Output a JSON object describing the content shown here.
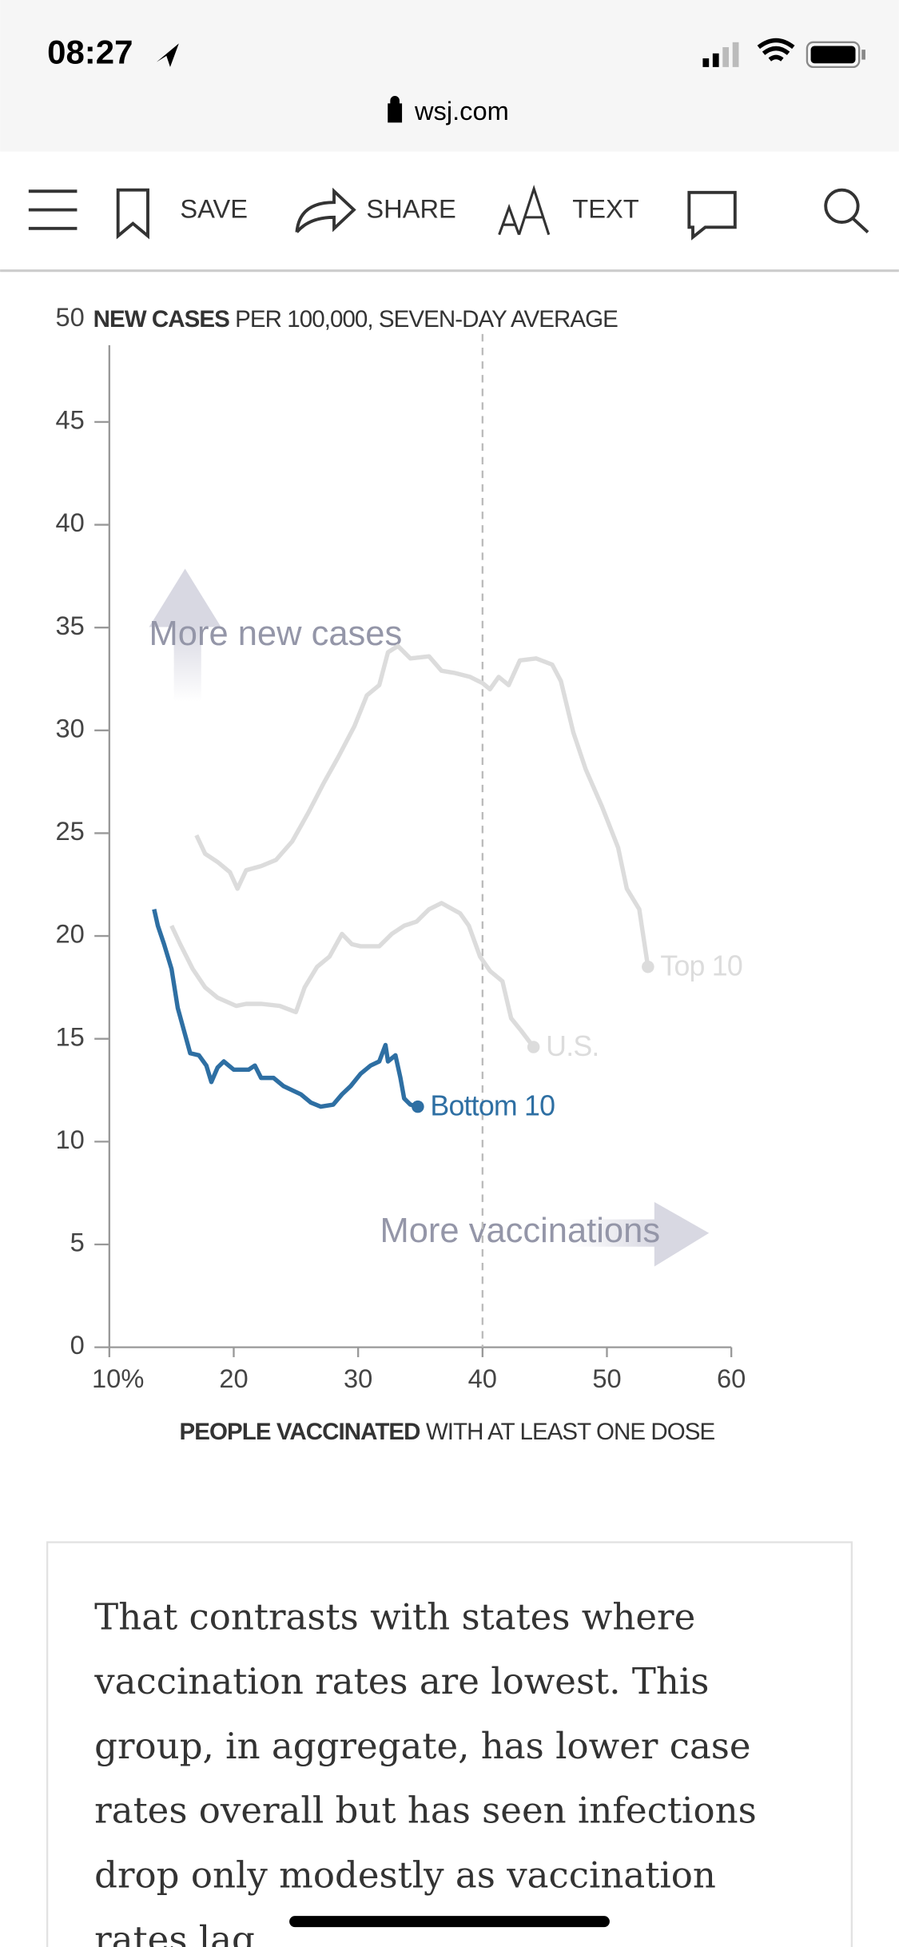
{
  "status_bar": {
    "time": "08:27"
  },
  "address_bar": {
    "url": "wsj.com"
  },
  "toolbar": {
    "save": "SAVE",
    "share": "SHARE",
    "text": "TEXT"
  },
  "chart_data": {
    "type": "line",
    "title_bold": "NEW CASES",
    "title_rest": "PER 100,000, SEVEN-DAY AVERAGE",
    "x_label_bold": "PEOPLE VACCINATED",
    "x_label_rest": "WITH AT LEAST ONE DOSE",
    "annotations": [
      "More new cases",
      "More vaccinations"
    ],
    "xlim": [
      10,
      60
    ],
    "ylim": [
      0,
      50
    ],
    "xticks": [
      {
        "value": 10,
        "label": "10%"
      },
      20,
      30,
      40,
      50,
      60
    ],
    "yticks": [
      0,
      5,
      10,
      15,
      20,
      25,
      30,
      35,
      40,
      45,
      50
    ],
    "reference_x": 40,
    "series": [
      {
        "name": "Top 10",
        "color": "#dcdcdc",
        "x": [
          17.0,
          17.7,
          18.7,
          19.7,
          20.3,
          21.0,
          22.2,
          23.4,
          24.7,
          26.0,
          27.2,
          28.4,
          29.7,
          30.7,
          31.7,
          32.4,
          33.2,
          34.2,
          35.7,
          36.7,
          37.7,
          39.0,
          40.0,
          40.6,
          41.3,
          42.1,
          43.0,
          44.3,
          45.6,
          46.3,
          47.3,
          48.3,
          49.6,
          50.9,
          51.6,
          52.6,
          53.3
        ],
        "values": [
          24.9,
          24.0,
          23.6,
          23.1,
          22.3,
          23.2,
          23.4,
          23.7,
          24.6,
          26.0,
          27.4,
          28.7,
          30.2,
          31.7,
          32.2,
          33.8,
          34.1,
          33.5,
          33.6,
          32.9,
          32.8,
          32.6,
          32.3,
          32.0,
          32.6,
          32.2,
          33.4,
          33.5,
          33.2,
          32.4,
          29.9,
          28.1,
          26.3,
          24.3,
          22.3,
          21.3,
          18.5
        ]
      },
      {
        "name": "U.S.",
        "color": "#dcdcdc",
        "x": [
          15.0,
          15.7,
          16.7,
          17.7,
          18.7,
          20.2,
          21.0,
          22.2,
          23.7,
          25.0,
          25.7,
          26.7,
          27.7,
          28.7,
          29.5,
          30.2,
          31.7,
          32.7,
          33.7,
          34.7,
          35.7,
          36.7,
          38.2,
          38.9,
          39.8,
          40.6,
          41.6,
          42.3,
          43.1,
          44.1
        ],
        "values": [
          20.5,
          19.6,
          18.4,
          17.5,
          17.0,
          16.6,
          16.7,
          16.7,
          16.6,
          16.3,
          17.5,
          18.5,
          19.0,
          20.1,
          19.6,
          19.5,
          19.5,
          20.1,
          20.5,
          20.7,
          21.3,
          21.6,
          21.1,
          20.5,
          19.0,
          18.3,
          17.8,
          16.0,
          15.4,
          14.6
        ]
      },
      {
        "name": "Bottom 10",
        "color": "#2e6fa3",
        "x": [
          13.6,
          13.9,
          14.4,
          15.0,
          15.5,
          16.0,
          16.5,
          17.2,
          17.8,
          18.2,
          18.7,
          19.2,
          20.0,
          21.2,
          21.7,
          22.2,
          23.2,
          24.0,
          24.7,
          25.4,
          26.2,
          27.0,
          28.0,
          28.7,
          29.4,
          30.2,
          31.0,
          31.7,
          32.2,
          32.4,
          33.0,
          33.4,
          33.7,
          34.2,
          34.8
        ],
        "values": [
          21.3,
          20.5,
          19.6,
          18.4,
          16.5,
          15.4,
          14.3,
          14.2,
          13.7,
          12.9,
          13.6,
          13.9,
          13.5,
          13.5,
          13.7,
          13.1,
          13.1,
          12.7,
          12.5,
          12.3,
          11.9,
          11.7,
          11.8,
          12.3,
          12.7,
          13.3,
          13.7,
          13.9,
          14.7,
          13.9,
          14.2,
          13.1,
          12.1,
          11.8,
          11.7
        ]
      }
    ]
  },
  "article": {
    "paragraph": "That contrasts with states where vaccination rates are lowest. This group, in aggregate, has lower case rates overall but has seen infections drop only modestly as vaccination rates lag"
  }
}
